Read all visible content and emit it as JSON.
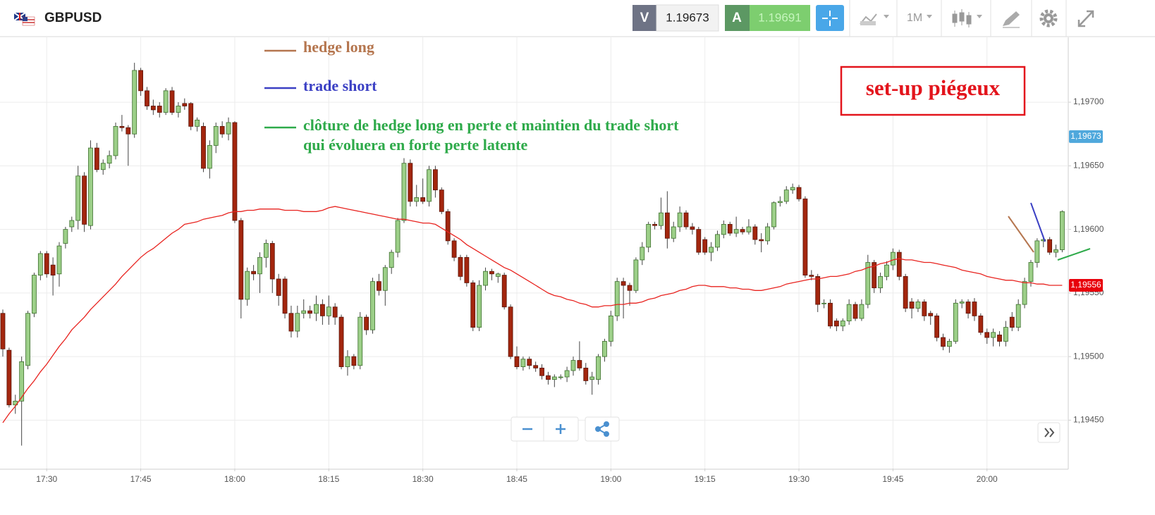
{
  "toolbar": {
    "symbol": "GBPUSD",
    "bid_label": "V",
    "bid": 1.19673,
    "ask_label": "A",
    "ask": 1.19691,
    "timeframe": "1M"
  },
  "chart_data": {
    "type": "candlestick",
    "categories": [
      null,
      null,
      null,
      null,
      null,
      null,
      null,
      "17:30",
      null,
      null,
      null,
      null,
      null,
      null,
      null,
      null,
      null,
      null,
      null,
      null,
      null,
      null,
      "17:45",
      null,
      null,
      null,
      null,
      null,
      null,
      null,
      null,
      null,
      null,
      null,
      null,
      null,
      null,
      "18:00",
      null,
      null,
      null,
      null,
      null,
      null,
      null,
      null,
      null,
      null,
      null,
      null,
      null,
      null,
      "18:15",
      null,
      null,
      null,
      null,
      null,
      null,
      null,
      null,
      null,
      null,
      null,
      null,
      null,
      null,
      "18:30",
      null,
      null,
      null,
      null,
      null,
      null,
      null,
      null,
      null,
      null,
      null,
      null,
      null,
      null,
      "18:45",
      null,
      null,
      null,
      null,
      null,
      null,
      null,
      null,
      null,
      null,
      null,
      null,
      null,
      null,
      "19:00",
      null,
      null,
      null,
      null,
      null,
      null,
      null,
      null,
      null,
      null,
      null,
      null,
      null,
      null,
      "19:15",
      null,
      null,
      null,
      null,
      null,
      null,
      null,
      null,
      null,
      null,
      null,
      null,
      null,
      null,
      "19:30",
      null,
      null,
      null,
      null,
      null,
      null,
      null,
      null,
      null,
      null,
      null,
      null,
      null,
      null,
      "19:45",
      null,
      null,
      null,
      null,
      null,
      null,
      null,
      null,
      null,
      null,
      null,
      null,
      null,
      null,
      "20:00",
      null,
      null,
      null,
      null,
      null,
      null,
      null,
      null,
      null,
      null,
      null,
      null
    ],
    "open": [
      1.19534,
      1.19505,
      1.19462,
      1.19465,
      1.19493,
      1.19534,
      1.19564,
      1.19581,
      1.19572,
      1.19565,
      1.19589,
      1.19602,
      1.19607,
      1.19642,
      1.19603,
      1.19664,
      1.19647,
      1.19652,
      1.19658,
      1.19681,
      1.1968,
      1.19675,
      1.19725,
      1.19709,
      1.19697,
      1.19697,
      1.19692,
      1.19709,
      1.19692,
      1.19699,
      1.19699,
      1.19681,
      1.19681,
      1.19648,
      1.19666,
      1.19681,
      1.19675,
      1.19684,
      1.19607,
      1.19545,
      1.19567,
      1.19565,
      1.19578,
      1.19589,
      1.19561,
      1.19561,
      1.19534,
      1.1952,
      1.19534,
      1.19536,
      1.19534,
      1.19541,
      1.19532,
      1.19539,
      1.19531,
      1.19492,
      1.195,
      1.19493,
      1.19531,
      1.19521,
      1.19559,
      1.19552,
      1.1957,
      1.19582,
      1.19607,
      1.19652,
      1.19622,
      1.19625,
      1.19622,
      1.19647,
      1.19631,
      1.19614,
      1.19591,
      1.19578,
      1.19578,
      1.19558,
      1.19523,
      1.19556,
      1.19567,
      1.19563,
      1.19564,
      1.19539,
      1.195,
      1.19492,
      1.19498,
      1.19493,
      1.19491,
      1.19485,
      1.19482,
      1.19484,
      1.19484,
      1.19489,
      1.19497,
      1.19491,
      1.19482,
      1.19482,
      1.195,
      1.19512,
      1.19532,
      1.19559,
      1.19556,
      1.19552,
      1.19576,
      1.19586,
      1.19604,
      1.19603,
      1.19613,
      1.19593,
      1.19602,
      1.19613,
      1.19602,
      1.196,
      1.19592,
      1.19582,
      1.19586,
      1.19596,
      1.19604,
      1.19597,
      1.196,
      1.19598,
      1.19602,
      1.19592,
      1.19591,
      1.19602,
      1.19621,
      1.19622,
      1.19631,
      1.19633,
      1.19624,
      1.19564,
      1.19563,
      1.19542,
      1.19542,
      1.19528,
      1.19524,
      1.19528,
      1.19541,
      1.1953,
      1.19541,
      1.19574,
      1.19554,
      1.19563,
      1.19572,
      1.19582,
      1.19563,
      1.19543,
      1.19538,
      1.19543,
      1.19534,
      1.19532,
      1.19515,
      1.19508,
      1.19512,
      1.19542,
      1.19543,
      1.19543,
      1.19532,
      1.19519,
      1.19515,
      1.19517,
      1.19512,
      1.19531,
      1.19523,
      1.19541,
      1.19559,
      1.19574,
      1.19591,
      1.19592,
      1.19582,
      1.19584
    ],
    "high": [
      1.19537,
      1.19507,
      1.1947,
      1.195,
      1.19536,
      1.19566,
      1.19583,
      1.19583,
      1.19578,
      1.1959,
      1.19602,
      1.1961,
      1.1965,
      1.19645,
      1.1967,
      1.19668,
      1.19655,
      1.19662,
      1.19684,
      1.1969,
      1.19682,
      1.19731,
      1.19727,
      1.19712,
      1.19702,
      1.197,
      1.19711,
      1.19712,
      1.197,
      1.19703,
      1.197,
      1.19688,
      1.19684,
      1.1967,
      1.19684,
      1.19685,
      1.19688,
      1.19685,
      1.19609,
      1.1957,
      1.19572,
      1.19582,
      1.19592,
      1.19591,
      1.19565,
      1.19563,
      1.1954,
      1.1954,
      1.19545,
      1.1954,
      1.19548,
      1.19545,
      1.19548,
      1.19542,
      1.19533,
      1.19505,
      1.19502,
      1.19535,
      1.19533,
      1.19562,
      1.19565,
      1.19572,
      1.19584,
      1.19609,
      1.19656,
      1.19655,
      1.19635,
      1.1964,
      1.1965,
      1.1965,
      1.19633,
      1.19616,
      1.19593,
      1.1958,
      1.1958,
      1.1956,
      1.1956,
      1.1957,
      1.19569,
      1.19566,
      1.19566,
      1.19541,
      1.19508,
      1.195,
      1.195,
      1.19496,
      1.19494,
      1.19488,
      1.19486,
      1.19486,
      1.19492,
      1.195,
      1.19512,
      1.19495,
      1.19488,
      1.19502,
      1.19514,
      1.19536,
      1.19562,
      1.19562,
      1.19558,
      1.19578,
      1.1959,
      1.19606,
      1.19606,
      1.19625,
      1.1963,
      1.19606,
      1.19618,
      1.19615,
      1.19605,
      1.19602,
      1.19594,
      1.1959,
      1.19599,
      1.19607,
      1.19606,
      1.1961,
      1.19602,
      1.19608,
      1.19604,
      1.19597,
      1.19605,
      1.19622,
      1.19626,
      1.19634,
      1.19636,
      1.19635,
      1.19626,
      1.19568,
      1.19565,
      1.19545,
      1.19545,
      1.1953,
      1.1953,
      1.19545,
      1.19543,
      1.19545,
      1.1958,
      1.19576,
      1.19566,
      1.19575,
      1.19585,
      1.19584,
      1.19565,
      1.19546,
      1.19545,
      1.19545,
      1.19536,
      1.19534,
      1.19518,
      1.19514,
      1.19545,
      1.19545,
      1.19545,
      1.19546,
      1.19534,
      1.19522,
      1.19522,
      1.1952,
      1.19528,
      1.19535,
      1.19545,
      1.19562,
      1.19576,
      1.19593,
      1.19595,
      1.19594,
      1.19588,
      1.19615
    ],
    "low": [
      1.195,
      1.1946,
      1.19455,
      1.1943,
      1.1949,
      1.19531,
      1.1956,
      1.19562,
      1.19548,
      1.19555,
      1.19585,
      1.19598,
      1.196,
      1.19598,
      1.196,
      1.19645,
      1.19643,
      1.19648,
      1.19655,
      1.19677,
      1.1965,
      1.19672,
      1.19705,
      1.19694,
      1.1969,
      1.19688,
      1.1969,
      1.1969,
      1.19688,
      1.19694,
      1.19678,
      1.19677,
      1.19645,
      1.1964,
      1.1966,
      1.19672,
      1.1967,
      1.19605,
      1.1953,
      1.1954,
      1.1956,
      1.1955,
      1.1957,
      1.1955,
      1.1954,
      1.1953,
      1.19515,
      1.19515,
      1.1953,
      1.1953,
      1.19528,
      1.19525,
      1.19525,
      1.19525,
      1.1949,
      1.19485,
      1.1949,
      1.1949,
      1.19517,
      1.19518,
      1.19548,
      1.1954,
      1.19565,
      1.19578,
      1.19605,
      1.19618,
      1.19618,
      1.1962,
      1.19618,
      1.19625,
      1.19612,
      1.19588,
      1.19575,
      1.1956,
      1.19555,
      1.1952,
      1.1952,
      1.19552,
      1.1956,
      1.19558,
      1.19537,
      1.19498,
      1.1949,
      1.19489,
      1.1949,
      1.19488,
      1.19482,
      1.19478,
      1.19476,
      1.19482,
      1.1948,
      1.19485,
      1.19489,
      1.19478,
      1.1947,
      1.19478,
      1.19496,
      1.19508,
      1.19528,
      1.1953,
      1.1954,
      1.1955,
      1.19572,
      1.19582,
      1.196,
      1.196,
      1.19585,
      1.1959,
      1.19598,
      1.196,
      1.19596,
      1.1958,
      1.1958,
      1.19575,
      1.19583,
      1.19593,
      1.19595,
      1.19594,
      1.19596,
      1.19596,
      1.19588,
      1.19582,
      1.19588,
      1.196,
      1.19618,
      1.1962,
      1.19628,
      1.19622,
      1.19562,
      1.1956,
      1.19535,
      1.19538,
      1.19522,
      1.1952,
      1.1952,
      1.19525,
      1.19528,
      1.19528,
      1.19538,
      1.1955,
      1.1955,
      1.1956,
      1.19568,
      1.1956,
      1.19535,
      1.1953,
      1.19535,
      1.19528,
      1.19525,
      1.19512,
      1.19505,
      1.19503,
      1.1951,
      1.19538,
      1.1953,
      1.19528,
      1.19517,
      1.1951,
      1.19508,
      1.19508,
      1.19508,
      1.1952,
      1.1952,
      1.19538,
      1.19555,
      1.1957,
      1.19586,
      1.1958,
      1.19578,
      1.19582
    ],
    "close": [
      1.19506,
      1.19462,
      1.19465,
      1.19496,
      1.19534,
      1.19564,
      1.19581,
      1.19565,
      1.19564,
      1.19587,
      1.196,
      1.19607,
      1.19642,
      1.19604,
      1.19664,
      1.19647,
      1.19652,
      1.19658,
      1.19681,
      1.1968,
      1.19675,
      1.19725,
      1.19709,
      1.19697,
      1.19694,
      1.19692,
      1.19709,
      1.19692,
      1.19697,
      1.19697,
      1.19681,
      1.19686,
      1.19648,
      1.19666,
      1.19681,
      1.19675,
      1.19684,
      1.19607,
      1.19545,
      1.19567,
      1.19565,
      1.19578,
      1.19589,
      1.19561,
      1.19548,
      1.19534,
      1.1952,
      1.19534,
      1.19536,
      1.19534,
      1.19541,
      1.19532,
      1.19539,
      1.19531,
      1.19492,
      1.195,
      1.19493,
      1.19531,
      1.19521,
      1.19559,
      1.19552,
      1.1957,
      1.19582,
      1.19607,
      1.19652,
      1.19622,
      1.19625,
      1.19622,
      1.19647,
      1.19631,
      1.19614,
      1.19591,
      1.19578,
      1.19563,
      1.19558,
      1.19523,
      1.19556,
      1.19567,
      1.19565,
      1.19565,
      1.19539,
      1.195,
      1.19492,
      1.19498,
      1.19493,
      1.19491,
      1.19485,
      1.19482,
      1.19484,
      1.19484,
      1.19489,
      1.19497,
      1.19491,
      1.19481,
      1.19484,
      1.195,
      1.19512,
      1.19532,
      1.19559,
      1.19556,
      1.19552,
      1.19576,
      1.19586,
      1.19604,
      1.19603,
      1.19613,
      1.19593,
      1.19602,
      1.19613,
      1.19602,
      1.196,
      1.19582,
      1.19582,
      1.19586,
      1.19596,
      1.19604,
      1.19597,
      1.196,
      1.19598,
      1.19602,
      1.19592,
      1.19591,
      1.19602,
      1.19621,
      1.19622,
      1.19631,
      1.19633,
      1.19624,
      1.19564,
      1.19563,
      1.19541,
      1.19542,
      1.19524,
      1.19524,
      1.19528,
      1.19541,
      1.1953,
      1.19541,
      1.19574,
      1.19554,
      1.19563,
      1.19572,
      1.19582,
      1.19563,
      1.19538,
      1.19538,
      1.19543,
      1.19532,
      1.19532,
      1.19515,
      1.19508,
      1.19512,
      1.19542,
      1.19543,
      1.19534,
      1.19532,
      1.19519,
      1.19515,
      1.19519,
      1.19512,
      1.19523,
      1.19523,
      1.19541,
      1.19559,
      1.19574,
      1.19591,
      1.19592,
      1.19582,
      1.19584,
      1.19614
    ],
    "up_color": "#9ccf88",
    "down_color": "#a3260e",
    "overlays": [
      {
        "type": "line",
        "color": "#e8231f",
        "values": [
          1.19448,
          1.19455,
          1.19461,
          1.19468,
          1.19475,
          1.19481,
          1.19488,
          1.19494,
          1.19501,
          1.19508,
          1.19514,
          1.19521,
          1.19526,
          1.19531,
          1.19537,
          1.19542,
          1.19547,
          1.19552,
          1.19557,
          1.19563,
          1.19568,
          1.19573,
          1.19578,
          1.19582,
          1.19585,
          1.19589,
          1.19593,
          1.19597,
          1.196,
          1.19604,
          1.19605,
          1.19606,
          1.19608,
          1.19609,
          1.1961,
          1.19611,
          1.19613,
          1.19614,
          1.19614,
          1.19615,
          1.19615,
          1.19616,
          1.19616,
          1.19616,
          1.19616,
          1.19615,
          1.19615,
          1.19615,
          1.19614,
          1.19614,
          1.19614,
          1.19615,
          1.19617,
          1.19618,
          1.19617,
          1.19616,
          1.19615,
          1.19614,
          1.19613,
          1.19612,
          1.19611,
          1.1961,
          1.19609,
          1.19608,
          1.19608,
          1.19607,
          1.19606,
          1.19605,
          1.19605,
          1.19604,
          1.19601,
          1.19598,
          1.19595,
          1.19592,
          1.19588,
          1.19585,
          1.19582,
          1.19579,
          1.19576,
          1.19573,
          1.1957,
          1.19568,
          1.19565,
          1.19562,
          1.19559,
          1.19556,
          1.19553,
          1.1955,
          1.19548,
          1.19547,
          1.19545,
          1.19544,
          1.19542,
          1.19541,
          1.19539,
          1.19539,
          1.1954,
          1.1954,
          1.19541,
          1.19541,
          1.19542,
          1.19542,
          1.19543,
          1.19545,
          1.19546,
          1.19548,
          1.19549,
          1.1955,
          1.19552,
          1.19553,
          1.19555,
          1.19556,
          1.19556,
          1.19555,
          1.19555,
          1.19555,
          1.19554,
          1.19554,
          1.19553,
          1.19553,
          1.19552,
          1.19552,
          1.19553,
          1.19554,
          1.19555,
          1.19557,
          1.19558,
          1.19559,
          1.1956,
          1.19561,
          1.19561,
          1.19562,
          1.19563,
          1.19563,
          1.19564,
          1.19565,
          1.19567,
          1.19568,
          1.1957,
          1.19571,
          1.19573,
          1.19574,
          1.19576,
          1.19577,
          1.19576,
          1.19576,
          1.19575,
          1.19574,
          1.19574,
          1.19573,
          1.19572,
          1.19571,
          1.1957,
          1.19568,
          1.19567,
          1.19566,
          1.19565,
          1.19563,
          1.19562,
          1.19561,
          1.1956,
          1.1956,
          1.19559,
          1.19558,
          1.19558,
          1.19557,
          1.19557,
          1.19556,
          1.19556,
          1.19556
        ]
      }
    ],
    "ylim": [
      1.19412,
      1.19751
    ],
    "yticks": [
      {
        "value": 1.1945,
        "label": "1,19450"
      },
      {
        "value": 1.195,
        "label": "1,19500"
      },
      {
        "value": 1.1955,
        "label": "1,19550"
      },
      {
        "value": 1.196,
        "label": "1,19600"
      },
      {
        "value": 1.1965,
        "label": "1,19650"
      },
      {
        "value": 1.197,
        "label": "1,19700"
      }
    ],
    "grid": true,
    "price_labels": [
      {
        "value": 1.19673,
        "label": "1,19673",
        "color": "#4fa8dc"
      },
      {
        "value": 1.19556,
        "label": "1,19556",
        "color": "#e8000b"
      }
    ],
    "annotations": [
      {
        "lines": [
          "hedge long"
        ],
        "color": "#b5764f"
      },
      {
        "lines": [
          "trade short"
        ],
        "color": "#3b40c4"
      },
      {
        "lines": [
          "clôture de hedge long en perte et maintien du trade short",
          "qui évoluera en forte perte latente"
        ],
        "color": "#2eaa4a"
      },
      {
        "lines": [
          "set-up piégeux"
        ],
        "color": "#e3141c"
      }
    ]
  }
}
